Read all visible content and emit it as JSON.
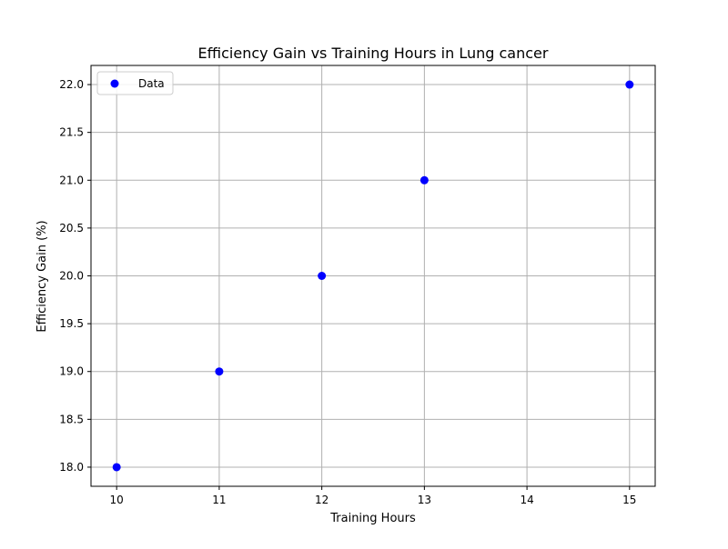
{
  "chart_data": {
    "type": "scatter",
    "title": "Efficiency Gain vs Training Hours in Lung cancer",
    "xlabel": "Training Hours",
    "ylabel": "Efficiency Gain (%)",
    "xlim": [
      9.75,
      15.25
    ],
    "ylim": [
      17.8,
      22.2
    ],
    "xticks": [
      10,
      11,
      12,
      13,
      14,
      15
    ],
    "yticks": [
      18.0,
      18.5,
      19.0,
      19.5,
      20.0,
      20.5,
      21.0,
      21.5,
      22.0
    ],
    "xtick_labels": [
      "10",
      "11",
      "12",
      "13",
      "14",
      "15"
    ],
    "ytick_labels": [
      "18.0",
      "18.5",
      "19.0",
      "19.5",
      "20.0",
      "20.5",
      "21.0",
      "21.5",
      "22.0"
    ],
    "grid": true,
    "legend_position": "top-left",
    "series": [
      {
        "name": "Data",
        "color": "#0000ff",
        "x": [
          10,
          11,
          12,
          13,
          15
        ],
        "y": [
          18,
          19,
          20,
          21,
          22
        ]
      }
    ]
  }
}
